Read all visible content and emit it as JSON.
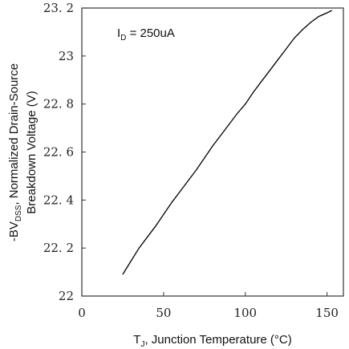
{
  "chart_data": {
    "type": "line",
    "xlabel_parts": [
      "T",
      "J",
      ", Junction Temperature (°C)"
    ],
    "ylabel_line1_parts": [
      "-BV",
      "DSS",
      ", Normalized Drain-Source"
    ],
    "ylabel_line2": "Breakdown Voltage (V)",
    "annotation_parts": [
      "I",
      "D",
      " = 250uA"
    ],
    "xlim": [
      0,
      160
    ],
    "ylim": [
      22.0,
      23.2
    ],
    "x_ticks": [
      0,
      50,
      100,
      150
    ],
    "x_tick_labels": [
      "0",
      "50",
      "100",
      "150"
    ],
    "y_ticks": [
      22.0,
      22.2,
      22.4,
      22.6,
      22.8,
      23.0,
      23.2
    ],
    "y_tick_labels": [
      "22",
      "22. 2",
      "22. 4",
      "22. 6",
      "22. 8",
      "23",
      "23. 2"
    ],
    "grid": false,
    "line_color": "#000000",
    "series": [
      {
        "x": [
          25,
          30,
          35,
          40,
          45,
          50,
          55,
          60,
          65,
          70,
          75,
          80,
          85,
          90,
          95,
          100,
          105,
          110,
          115,
          120,
          125,
          130,
          135,
          140,
          145,
          150,
          153
        ],
        "y": [
          22.09,
          22.145,
          22.2,
          22.245,
          22.29,
          22.34,
          22.39,
          22.435,
          22.48,
          22.525,
          22.575,
          22.625,
          22.67,
          22.715,
          22.76,
          22.8,
          22.85,
          22.895,
          22.94,
          22.985,
          23.03,
          23.075,
          23.11,
          23.14,
          23.165,
          23.18,
          23.19
        ]
      }
    ]
  }
}
